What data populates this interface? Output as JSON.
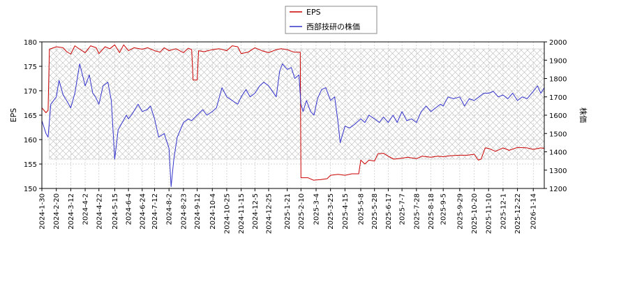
{
  "chart_data": {
    "type": "line",
    "title": "",
    "xlabel": "",
    "ylabel": "EPS",
    "y2label": "株価",
    "ylim": [
      150,
      180
    ],
    "y2lim": [
      1200,
      2000
    ],
    "y_ticks": [
      150,
      155,
      160,
      165,
      170,
      175,
      180
    ],
    "y2_ticks": [
      1200,
      1300,
      1400,
      1500,
      1600,
      1700,
      1800,
      1900,
      2000
    ],
    "x_range": [
      "2024-01-30",
      "2026-01-30"
    ],
    "x_ticks": [
      "2024-1-30",
      "2024-2-20",
      "2024-3-12",
      "2024-4-2",
      "2024-4-22",
      "2024-5-15",
      "2024-6-4",
      "2024-6-24",
      "2024-7-12",
      "2024-8-2",
      "2024-8-23",
      "2024-9-12",
      "2024-10-4",
      "2024-10-25",
      "2024-11-15",
      "2024-12-5",
      "2024-12-25",
      "2025-1-21",
      "2025-2-10",
      "2025-3-4",
      "2025-3-25",
      "2025-4-15",
      "2025-5-8",
      "2025-5-28",
      "2025-6-17",
      "2025-7-7",
      "2025-7-28",
      "2025-8-18",
      "2025-9-5",
      "2025-9-29",
      "2025-10-20",
      "2025-11-10",
      "2025-12-1",
      "2025-12-22",
      "2026-1-14"
    ],
    "hatched_region": [
      "2024-02-10",
      "2026-01-30"
    ],
    "grid": true,
    "legend_position": "top-center",
    "series": [
      {
        "name": "EPS",
        "axis": "left",
        "color": "#cc0000",
        "points": [
          [
            "2024-01-30",
            166.5
          ],
          [
            "2024-02-05",
            165.5
          ],
          [
            "2024-02-08",
            166
          ],
          [
            "2024-02-10",
            178.5
          ],
          [
            "2024-02-20",
            179
          ],
          [
            "2024-03-01",
            178.8
          ],
          [
            "2024-03-06",
            178
          ],
          [
            "2024-03-12",
            177.5
          ],
          [
            "2024-03-18",
            179.2
          ],
          [
            "2024-03-25",
            178.5
          ],
          [
            "2024-04-02",
            177.8
          ],
          [
            "2024-04-10",
            179.2
          ],
          [
            "2024-04-18",
            178.8
          ],
          [
            "2024-04-22",
            177.6
          ],
          [
            "2024-05-01",
            179
          ],
          [
            "2024-05-08",
            178.6
          ],
          [
            "2024-05-15",
            179.4
          ],
          [
            "2024-05-22",
            177.8
          ],
          [
            "2024-05-28",
            179.4
          ],
          [
            "2024-06-04",
            178.2
          ],
          [
            "2024-06-12",
            178.8
          ],
          [
            "2024-06-24",
            178.5
          ],
          [
            "2024-07-02",
            178.8
          ],
          [
            "2024-07-12",
            178.2
          ],
          [
            "2024-07-20",
            177.9
          ],
          [
            "2024-07-26",
            178.8
          ],
          [
            "2024-08-02",
            178.2
          ],
          [
            "2024-08-12",
            178.6
          ],
          [
            "2024-08-23",
            177.8
          ],
          [
            "2024-08-30",
            178.7
          ],
          [
            "2024-09-04",
            178.4
          ],
          [
            "2024-09-06",
            172.2
          ],
          [
            "2024-09-12",
            172.2
          ],
          [
            "2024-09-14",
            178.2
          ],
          [
            "2024-09-22",
            178
          ],
          [
            "2024-10-04",
            178.4
          ],
          [
            "2024-10-14",
            178.6
          ],
          [
            "2024-10-25",
            178.2
          ],
          [
            "2024-11-02",
            179.2
          ],
          [
            "2024-11-10",
            179
          ],
          [
            "2024-11-15",
            177.6
          ],
          [
            "2024-11-25",
            177.9
          ],
          [
            "2024-12-05",
            178.8
          ],
          [
            "2024-12-15",
            178.2
          ],
          [
            "2024-12-25",
            177.8
          ],
          [
            "2025-01-05",
            178.4
          ],
          [
            "2025-01-12",
            178.6
          ],
          [
            "2025-01-21",
            178.4
          ],
          [
            "2025-01-31",
            177.9
          ],
          [
            "2025-02-09",
            177.9
          ],
          [
            "2025-02-10",
            152.2
          ],
          [
            "2025-02-20",
            152.2
          ],
          [
            "2025-02-28",
            151.7
          ],
          [
            "2025-03-10",
            151.8
          ],
          [
            "2025-03-20",
            152
          ],
          [
            "2025-03-25",
            152.7
          ],
          [
            "2025-04-05",
            152.9
          ],
          [
            "2025-04-15",
            152.7
          ],
          [
            "2025-04-25",
            153
          ],
          [
            "2025-05-05",
            153
          ],
          [
            "2025-05-08",
            155.8
          ],
          [
            "2025-05-14",
            155
          ],
          [
            "2025-05-20",
            155.8
          ],
          [
            "2025-05-28",
            155.6
          ],
          [
            "2025-06-02",
            157.1
          ],
          [
            "2025-06-10",
            157.2
          ],
          [
            "2025-06-17",
            156.6
          ],
          [
            "2025-06-25",
            156
          ],
          [
            "2025-07-07",
            156.2
          ],
          [
            "2025-07-15",
            156.4
          ],
          [
            "2025-07-28",
            156.1
          ],
          [
            "2025-08-05",
            156.6
          ],
          [
            "2025-08-18",
            156.4
          ],
          [
            "2025-08-28",
            156.6
          ],
          [
            "2025-09-05",
            156.5
          ],
          [
            "2025-09-15",
            156.7
          ],
          [
            "2025-09-29",
            156.8
          ],
          [
            "2025-10-10",
            156.8
          ],
          [
            "2025-10-20",
            157
          ],
          [
            "2025-10-26",
            155.8
          ],
          [
            "2025-10-30",
            156
          ],
          [
            "2025-11-05",
            158.3
          ],
          [
            "2025-11-10",
            158.2
          ],
          [
            "2025-11-20",
            157.6
          ],
          [
            "2025-12-01",
            158.3
          ],
          [
            "2025-12-10",
            157.8
          ],
          [
            "2025-12-22",
            158.4
          ],
          [
            "2026-01-05",
            158.3
          ],
          [
            "2026-01-14",
            158
          ],
          [
            "2026-01-25",
            158.3
          ],
          [
            "2026-01-30",
            158.2
          ]
        ]
      },
      {
        "name": "西部技研の株価",
        "axis": "right",
        "color": "#3333cc",
        "points": [
          [
            "2024-01-30",
            1570
          ],
          [
            "2024-02-05",
            1500
          ],
          [
            "2024-02-08",
            1480
          ],
          [
            "2024-02-12",
            1660
          ],
          [
            "2024-02-20",
            1700
          ],
          [
            "2024-02-24",
            1790
          ],
          [
            "2024-03-01",
            1710
          ],
          [
            "2024-03-06",
            1680
          ],
          [
            "2024-03-12",
            1640
          ],
          [
            "2024-03-18",
            1720
          ],
          [
            "2024-03-25",
            1880
          ],
          [
            "2024-04-02",
            1760
          ],
          [
            "2024-04-08",
            1820
          ],
          [
            "2024-04-13",
            1720
          ],
          [
            "2024-04-17",
            1700
          ],
          [
            "2024-04-22",
            1660
          ],
          [
            "2024-04-28",
            1760
          ],
          [
            "2024-05-05",
            1780
          ],
          [
            "2024-05-10",
            1680
          ],
          [
            "2024-05-15",
            1360
          ],
          [
            "2024-05-20",
            1520
          ],
          [
            "2024-05-26",
            1560
          ],
          [
            "2024-06-01",
            1600
          ],
          [
            "2024-06-04",
            1580
          ],
          [
            "2024-06-10",
            1610
          ],
          [
            "2024-06-18",
            1660
          ],
          [
            "2024-06-24",
            1620
          ],
          [
            "2024-07-01",
            1630
          ],
          [
            "2024-07-06",
            1650
          ],
          [
            "2024-07-12",
            1580
          ],
          [
            "2024-07-18",
            1480
          ],
          [
            "2024-07-26",
            1500
          ],
          [
            "2024-08-02",
            1420
          ],
          [
            "2024-08-05",
            1210
          ],
          [
            "2024-08-09",
            1360
          ],
          [
            "2024-08-14",
            1480
          ],
          [
            "2024-08-23",
            1560
          ],
          [
            "2024-08-30",
            1580
          ],
          [
            "2024-09-04",
            1570
          ],
          [
            "2024-09-12",
            1600
          ],
          [
            "2024-09-20",
            1630
          ],
          [
            "2024-09-26",
            1600
          ],
          [
            "2024-10-04",
            1620
          ],
          [
            "2024-10-10",
            1640
          ],
          [
            "2024-10-18",
            1750
          ],
          [
            "2024-10-25",
            1700
          ],
          [
            "2024-11-02",
            1680
          ],
          [
            "2024-11-10",
            1660
          ],
          [
            "2024-11-15",
            1700
          ],
          [
            "2024-11-22",
            1740
          ],
          [
            "2024-11-28",
            1700
          ],
          [
            "2024-12-05",
            1720
          ],
          [
            "2024-12-12",
            1760
          ],
          [
            "2024-12-18",
            1780
          ],
          [
            "2024-12-25",
            1760
          ],
          [
            "2025-01-05",
            1700
          ],
          [
            "2025-01-10",
            1840
          ],
          [
            "2025-01-14",
            1880
          ],
          [
            "2025-01-21",
            1850
          ],
          [
            "2025-01-27",
            1860
          ],
          [
            "2025-02-01",
            1800
          ],
          [
            "2025-02-07",
            1820
          ],
          [
            "2025-02-10",
            1660
          ],
          [
            "2025-02-13",
            1620
          ],
          [
            "2025-02-18",
            1680
          ],
          [
            "2025-02-24",
            1620
          ],
          [
            "2025-03-01",
            1600
          ],
          [
            "2025-03-06",
            1690
          ],
          [
            "2025-03-12",
            1740
          ],
          [
            "2025-03-18",
            1750
          ],
          [
            "2025-03-25",
            1680
          ],
          [
            "2025-03-31",
            1700
          ],
          [
            "2025-04-05",
            1560
          ],
          [
            "2025-04-08",
            1450
          ],
          [
            "2025-04-15",
            1540
          ],
          [
            "2025-04-22",
            1530
          ],
          [
            "2025-04-29",
            1550
          ],
          [
            "2025-05-08",
            1580
          ],
          [
            "2025-05-14",
            1560
          ],
          [
            "2025-05-20",
            1600
          ],
          [
            "2025-05-28",
            1580
          ],
          [
            "2025-06-04",
            1560
          ],
          [
            "2025-06-10",
            1590
          ],
          [
            "2025-06-17",
            1560
          ],
          [
            "2025-06-24",
            1600
          ],
          [
            "2025-06-30",
            1560
          ],
          [
            "2025-07-07",
            1620
          ],
          [
            "2025-07-14",
            1570
          ],
          [
            "2025-07-21",
            1580
          ],
          [
            "2025-07-28",
            1560
          ],
          [
            "2025-08-04",
            1620
          ],
          [
            "2025-08-11",
            1650
          ],
          [
            "2025-08-18",
            1620
          ],
          [
            "2025-08-25",
            1640
          ],
          [
            "2025-09-01",
            1660
          ],
          [
            "2025-09-05",
            1650
          ],
          [
            "2025-09-12",
            1700
          ],
          [
            "2025-09-20",
            1690
          ],
          [
            "2025-09-29",
            1700
          ],
          [
            "2025-10-06",
            1650
          ],
          [
            "2025-10-13",
            1690
          ],
          [
            "2025-10-20",
            1680
          ],
          [
            "2025-10-27",
            1700
          ],
          [
            "2025-11-03",
            1720
          ],
          [
            "2025-11-10",
            1720
          ],
          [
            "2025-11-17",
            1730
          ],
          [
            "2025-11-24",
            1700
          ],
          [
            "2025-12-01",
            1710
          ],
          [
            "2025-12-08",
            1690
          ],
          [
            "2025-12-15",
            1720
          ],
          [
            "2025-12-22",
            1680
          ],
          [
            "2025-12-29",
            1700
          ],
          [
            "2026-01-05",
            1690
          ],
          [
            "2026-01-14",
            1730
          ],
          [
            "2026-01-20",
            1760
          ],
          [
            "2026-01-25",
            1720
          ],
          [
            "2026-01-30",
            1750
          ]
        ]
      }
    ]
  }
}
